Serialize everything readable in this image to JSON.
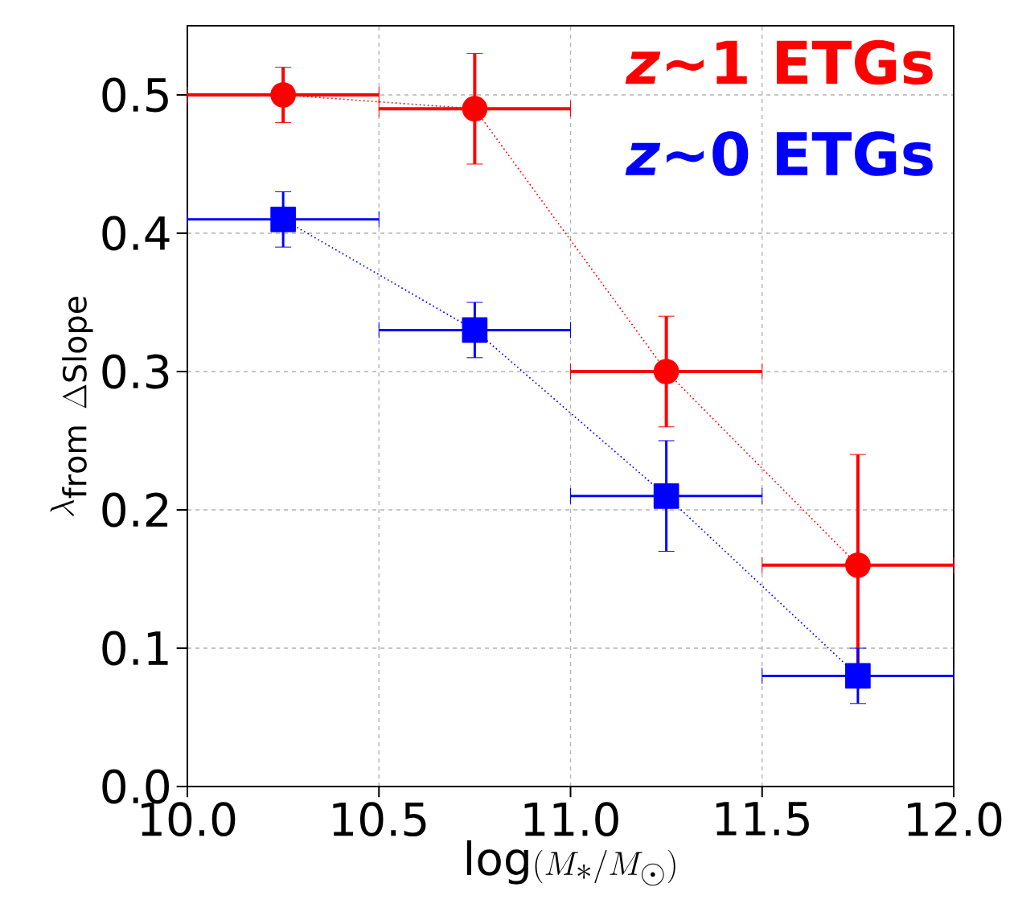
{
  "chart_data": {
    "type": "line",
    "xlabel": "\\log(M_*/M_\\odot)",
    "ylabel": "\\lambda_{\\mathrm{from}\\ \\Delta\\mathrm{Slope}}",
    "x": [
      10.25,
      10.75,
      11.25,
      11.75
    ],
    "series": [
      {
        "name": "*z*~1 ETGs",
        "color": "#ff0000",
        "marker": "circle",
        "values": [
          0.5,
          0.49,
          0.3,
          0.16
        ],
        "errors": [
          0.02,
          0.04,
          0.04,
          0.08
        ],
        "xerrors": [
          0.25,
          0.25,
          0.25,
          0.25
        ]
      },
      {
        "name": "*z*~0 ETGs",
        "color": "#0000ff",
        "marker": "square",
        "values": [
          0.41,
          0.33,
          0.21,
          0.08
        ],
        "errors": [
          0.02,
          0.02,
          0.04,
          0.02
        ],
        "xerrors": [
          0.25,
          0.25,
          0.25,
          0.25
        ]
      }
    ],
    "line_style": "dotted",
    "grid": true,
    "legend": "top right",
    "xlim": [
      10.0,
      12.0
    ],
    "ylim": [
      0.0,
      0.55
    ],
    "xticks": [
      {
        "value": 10.0,
        "label": "10.0"
      },
      10.5,
      {
        "value": 11.0,
        "label": "11.0"
      },
      11.5,
      {
        "value": 12.0,
        "label": "12.0"
      }
    ],
    "yticks": [
      {
        "value": 0.0,
        "label": "0.0"
      },
      0.1,
      0.2,
      0.3,
      0.4,
      0.5
    ]
  }
}
